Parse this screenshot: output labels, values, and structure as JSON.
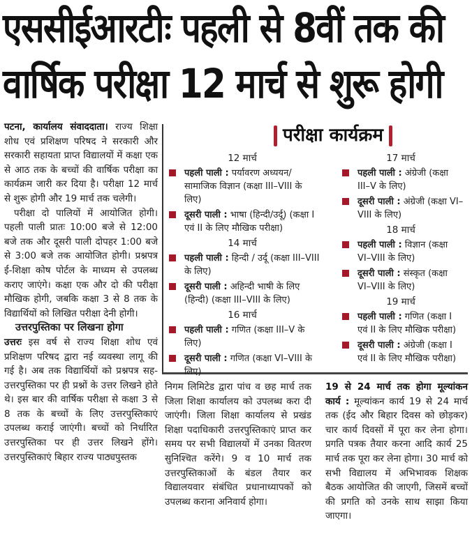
{
  "headline": {
    "line1": "एससीईआरटीः पहली से 8वीं तक की",
    "line2": "वार्षिक परीक्षा 12 मार्च से शुरू होगी"
  },
  "left_column": {
    "dateline": "पटना, कार्यालय संवाददाता।",
    "p1": "राज्य शिक्षा शोध एवं प्रशिक्षण परिषद ने सरकारी और सरकारी सहायता प्राप्त विद्यालयों में कक्षा एक से आठ तक के बच्चों की वार्षिक परीक्षा का कार्यक्रम जारी कर दिया है। परीक्षा 12 मार्च से शुरू होगी और 19 मार्च तक चलेगी।",
    "p2": "परीक्षा दो पालियों में आयोजित होगी। पहली पाली प्रातः 10:00 बजे से 12:00 बजे तक और दूसरी पाली दोपहर 1:00 बजे से 3:00 बजे तक आयोजित होगी। प्रश्नपत्र ई-शिक्षा कोष पोर्टल के माध्यम से उपलब्ध कराए जाएंगे। कक्षा एक और दो की परीक्षा मौखिक होगी, जबकि कक्षा 3 से 8 तक के विद्यार्थियों को लिखित परीक्षा देनी होगी।",
    "subhead": "उत्तरपुस्तिका पर लिखना होगा",
    "p3_lead": "उत्तरः",
    "p3": "इस वर्ष से राज्य शिक्षा शोध एवं प्रशिक्षण परिषद द्वारा नई व्यवस्था लागू की गई है। अब तक विद्यार्थियों को प्रश्नपत्र सह-उत्तरपुस्तिका पर ही प्रश्नों के उत्तर लिखने होते थे। इस बार की वार्षिक परीक्षा से कक्षा 3 से 8 तक के बच्चों के लिए उत्तरपुस्तिकाएं उपलब्ध कराई जाएंगी। बच्चों को निर्धारित उत्तरपुस्तिका पर ही उत्तर लिखने होंगे। उत्तरपुस्तिकाएं बिहार राज्य पाठ्यपुस्तक"
  },
  "schedule": {
    "title": "परीक्षा कार्यक्रम",
    "accent_color": "#a3192a",
    "days": [
      {
        "date": "12 मार्च",
        "items": [
          {
            "label": "पहली पाली :",
            "text": "पर्यावरण अध्ययन/सामाजिक विज्ञान (कक्षा III–VIII के लिए)"
          },
          {
            "label": "दूसरी पाली :",
            "text": "भाषा (हिन्दी/उर्दू) (कक्षा I एवं II के लिए मौखिक परीक्षा)"
          }
        ]
      },
      {
        "date": "14 मार्च",
        "items": [
          {
            "label": "पहली पाली :",
            "text": "हिन्दी / उर्दू (कक्षा III–VIII के लिए)"
          },
          {
            "label": "दूसरी पाली :",
            "text": "अहिन्दी भाषी के लिए (हिन्दी) (कक्षा III–VIII के लिए)"
          }
        ]
      },
      {
        "date": "16 मार्च",
        "items": [
          {
            "label": "पहली पाली :",
            "text": "गणित (कक्षा III–V के लिए)"
          },
          {
            "label": "दूसरी पाली :",
            "text": "गणित (कक्षा VI–VIII के लिए)"
          }
        ]
      },
      {
        "date": "17 मार्च",
        "items": [
          {
            "label": "पहली पाली :",
            "text": "अंग्रेजी (कक्षा III–V के लिए)"
          },
          {
            "label": "दूसरी पाली :",
            "text": "अंग्रेजी (कक्षा VI–VIII के लिए)"
          }
        ]
      },
      {
        "date": "18 मार्च",
        "items": [
          {
            "label": "पहली पाली :",
            "text": "विज्ञान (कक्षा VI–VIII के लिए)"
          },
          {
            "label": "दूसरी पाली :",
            "text": "संस्कृत (कक्षा VI–VIII के लिए)"
          }
        ]
      },
      {
        "date": "19 मार्च",
        "items": [
          {
            "label": "पहली पाली :",
            "text": "गणित (कक्षा I एवं II के लिए मौखिक परीक्षा)"
          },
          {
            "label": "दूसरी पाली :",
            "text": "अंग्रेजी (कक्षा I एवं II के लिए मौखिक परीक्षा)"
          }
        ]
      }
    ]
  },
  "middle_column": {
    "p1": "निगम लिमिटेड द्वारा पांच व छह मार्च तक जिला शिक्षा कार्यालय को उपलब्ध करा दी जाएंगी। जिला शिक्षा कार्यालय से प्रखंड शिक्षा पदाधिकारी उत्तरपुस्तिकाएं प्राप्त कर समय पर सभी विद्यालयों में उनका वितरण सुनिश्चित करेंगे। 9 व 10 मार्च तक उत्तरपुस्तिकाओं के बंडल तैयार कर विद्यालयवार संबंधित प्रधानाध्यापकों को उपलब्ध कराना अनिवार्य होगा।"
  },
  "right_column": {
    "lead": "19 से 24 मार्च तक होगा मूल्यांकन कार्य :",
    "p1": "मूल्यांकन कार्य 19 से 24 मार्च तक (ईद और बिहार दिवस को छोड़कर) चार कार्य दिवसों में पूरा कर लेना होगा। प्रगति पत्रक तैयार करना आदि कार्य 25 मार्च तक पूरा कर लेना होगा। 30 मार्च को सभी विद्यालय में अभिभावक शिक्षक बैठक आयोजित की जाएगी, जिसमें बच्चों की प्रगति को उनके साथ साझा किया जाएगा।"
  }
}
